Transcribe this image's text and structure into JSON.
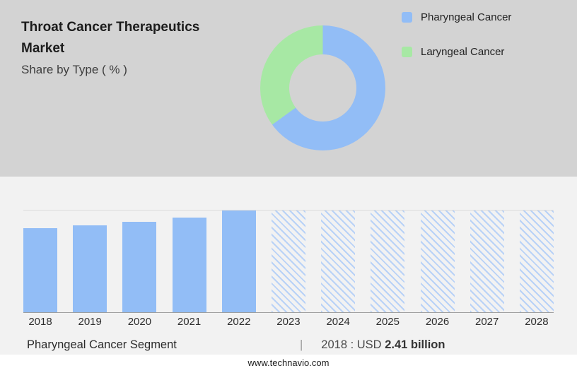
{
  "header": {
    "title_line1": "Throat Cancer Therapeutics",
    "title_line2": "Market",
    "subtitle": "Share by Type ( % )"
  },
  "colors": {
    "hero_background": "#d3d3d3",
    "section_background": "#f2f2f2",
    "pharyngeal_blue": "#92bdf6",
    "laryngeal_green": "#a7e8a4",
    "forecast_hatch_blue": "#b9d2f7"
  },
  "chart_data": [
    {
      "type": "pie",
      "donut": true,
      "title": "Share by Type ( % )",
      "labels": [
        "Pharyngeal Cancer",
        "Laryngeal Cancer"
      ],
      "values": [
        65,
        35
      ],
      "colors": [
        "#92bdf6",
        "#a7e8a4"
      ],
      "legend_position": "right",
      "start_angle_deg": 0
    },
    {
      "type": "bar",
      "categories": [
        "2018",
        "2019",
        "2020",
        "2021",
        "2022",
        "2023",
        "2024",
        "2025",
        "2026",
        "2027",
        "2028"
      ],
      "series": [
        {
          "name": "Pharyngeal Cancer Segment",
          "values": [
            2.41,
            2.49,
            2.59,
            2.72,
            2.92,
            null,
            null,
            null,
            null,
            null,
            null
          ]
        }
      ],
      "relative_heights": [
        0.825,
        0.853,
        0.888,
        0.93,
        1,
        1,
        1,
        1,
        1,
        1,
        1
      ],
      "forecast_start": "2023",
      "known_value_label": "2018 : USD 2.41 billion",
      "colors": {
        "solid": "#92bdf6",
        "hatch": "#b9d2f7"
      },
      "grid": "top and bottom horizontal lines only",
      "legend_position": "none",
      "xlabel": "",
      "ylabel": ""
    }
  ],
  "caption": {
    "segment_label": "Pharyngeal Cancer Segment",
    "separator": "|",
    "value_prefix": "2018 : USD ",
    "value_bold": "2.41 billion"
  },
  "footer": {
    "url": "www.technavio.com"
  }
}
